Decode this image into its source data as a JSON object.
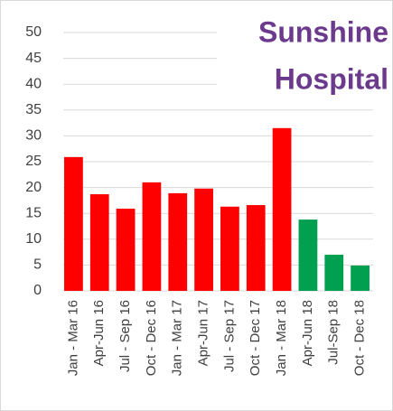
{
  "chart_data": {
    "type": "bar",
    "title": [
      "Sunshine",
      "Hospital"
    ],
    "title_color": "#6b3a8c",
    "categories": [
      "Jan - Mar 16",
      "Apr-Jun 16",
      "Jul - Sep 16",
      "Oct - Dec 16",
      "Jan - Mar 17",
      "Apr-Jun 17",
      "Jul - Sep 17",
      "Oct - Dec 17",
      "Jan - Mar 18",
      "Apr-Jun 18",
      "Jul-Sep 18",
      "Oct - Dec 18"
    ],
    "values": [
      25.9,
      18.7,
      15.9,
      21,
      18.9,
      19.8,
      16.3,
      16.6,
      31.5,
      13.8,
      7,
      4.9
    ],
    "colors": [
      "#ff0000",
      "#ff0000",
      "#ff0000",
      "#ff0000",
      "#ff0000",
      "#ff0000",
      "#ff0000",
      "#ff0000",
      "#ff0000",
      "#00a050",
      "#00a050",
      "#00a050"
    ],
    "ylim": [
      0,
      50
    ],
    "yticks": [
      0,
      5,
      10,
      15,
      20,
      25,
      30,
      35,
      40,
      45,
      50
    ],
    "grid": true
  }
}
